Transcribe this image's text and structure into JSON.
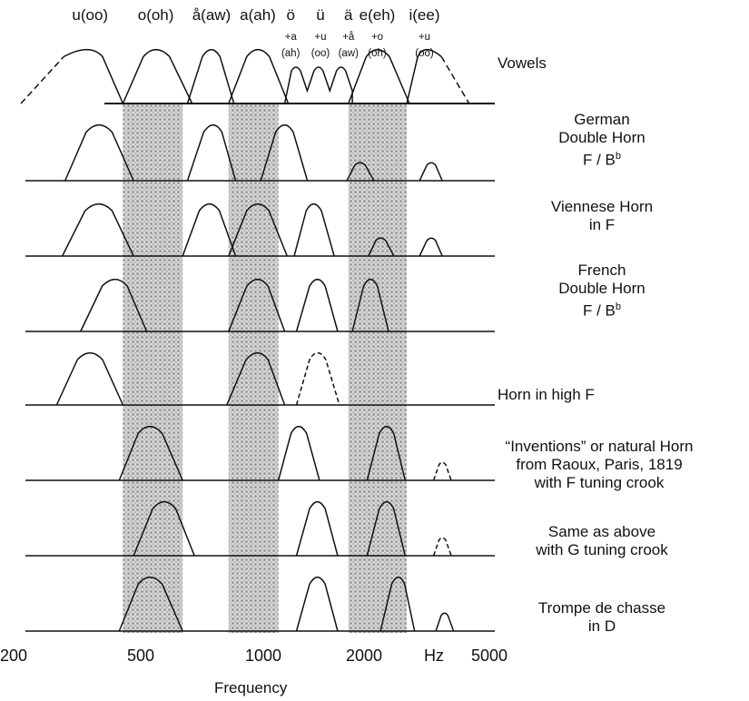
{
  "vowels": [
    {
      "label": "u(oo)",
      "sub1": "",
      "sub2": "",
      "freq": 320
    },
    {
      "label": "o(oh)",
      "sub1": "",
      "sub2": "",
      "freq": 500
    },
    {
      "label": "å(aw)",
      "sub1": "",
      "sub2": "",
      "freq": 730
    },
    {
      "label": "a(ah)",
      "sub1": "",
      "sub2": "",
      "freq": 1000
    },
    {
      "label": "ö",
      "sub1": "+a",
      "sub2": "(ah)",
      "freq": 1250
    },
    {
      "label": "ü",
      "sub1": "+u",
      "sub2": "(oo)",
      "freq": 1530
    },
    {
      "label": "ä",
      "sub1": "+å",
      "sub2": "(aw)",
      "freq": 1850
    },
    {
      "label": "e(eh)",
      "sub1": "+o",
      "sub2": "(oh)",
      "freq": 2250
    },
    {
      "label": "i(ee)",
      "sub1": "+u",
      "sub2": "(oo)",
      "freq": 3100
    }
  ],
  "rows": [
    {
      "label": "Vowels",
      "sup": ""
    },
    {
      "label": "German\nDouble Horn\nF / B",
      "sup": "b"
    },
    {
      "label": "Viennese Horn\nin F",
      "sup": ""
    },
    {
      "label": "French\nDouble Horn\nF / B",
      "sup": "b"
    },
    {
      "label": "Horn in high F",
      "sup": ""
    },
    {
      "label": "“Inventions” or natural Horn\nfrom Raoux, Paris, 1819\nwith F tuning crook",
      "sup": ""
    },
    {
      "label": "Same as above\nwith G tuning crook",
      "sup": ""
    },
    {
      "label": "Trompe de chasse\nin D",
      "sup": ""
    }
  ],
  "axis": {
    "ticks": [
      "200",
      "500",
      "1000",
      "2000",
      "Hz",
      "5000"
    ],
    "label": "Frequency",
    "min": 200,
    "max": 5000,
    "scale": "log"
  },
  "shaded_bands": [
    [
      400,
      600
    ],
    [
      820,
      1150
    ],
    [
      1850,
      2750
    ]
  ],
  "peaks": [
    [
      {
        "lo": 200,
        "c": 320,
        "hi": 400,
        "dashed_left": true
      },
      {
        "lo": 400,
        "c": 500,
        "hi": 640
      },
      {
        "lo": 620,
        "c": 730,
        "hi": 850
      },
      {
        "lo": 820,
        "c": 1000,
        "hi": 1230
      },
      {
        "lo": 1200,
        "c": 1500,
        "hi": 1900,
        "triple": true
      },
      {
        "lo": 1850,
        "c": 2250,
        "hi": 2800
      },
      {
        "lo": 2750,
        "c": 3100,
        "hi": 4200,
        "dashed_right": true
      }
    ],
    [
      {
        "lo": 270,
        "c": 340,
        "hi": 430
      },
      {
        "lo": 620,
        "c": 740,
        "hi": 860
      },
      {
        "lo": 1020,
        "c": 1200,
        "hi": 1400
      },
      {
        "lo": 1830,
        "c": 2000,
        "hi": 2200
      },
      {
        "lo": 3000,
        "c": 3250,
        "hi": 3500
      }
    ],
    [
      {
        "lo": 265,
        "c": 340,
        "hi": 430
      },
      {
        "lo": 600,
        "c": 720,
        "hi": 860
      },
      {
        "lo": 820,
        "c": 1000,
        "hi": 1220
      },
      {
        "lo": 1280,
        "c": 1460,
        "hi": 1680
      },
      {
        "lo": 2120,
        "c": 2300,
        "hi": 2520
      },
      {
        "lo": 3000,
        "c": 3250,
        "hi": 3500
      }
    ],
    [
      {
        "lo": 300,
        "c": 380,
        "hi": 470
      },
      {
        "lo": 820,
        "c": 1000,
        "hi": 1200
      },
      {
        "lo": 1300,
        "c": 1500,
        "hi": 1720
      },
      {
        "lo": 1900,
        "c": 2150,
        "hi": 2430
      }
    ],
    [
      {
        "lo": 255,
        "c": 320,
        "hi": 400
      },
      {
        "lo": 810,
        "c": 1000,
        "hi": 1200
      },
      {
        "lo": 1300,
        "c": 1500,
        "hi": 1740,
        "dashed": true
      }
    ],
    [
      {
        "lo": 390,
        "c": 480,
        "hi": 600
      },
      {
        "lo": 1150,
        "c": 1320,
        "hi": 1520
      },
      {
        "lo": 2100,
        "c": 2400,
        "hi": 2720
      },
      {
        "lo": 3300,
        "c": 3500,
        "hi": 3720,
        "dashed": true
      }
    ],
    [
      {
        "lo": 430,
        "c": 530,
        "hi": 650
      },
      {
        "lo": 1300,
        "c": 1500,
        "hi": 1720
      },
      {
        "lo": 2100,
        "c": 2400,
        "hi": 2720
      },
      {
        "lo": 3300,
        "c": 3500,
        "hi": 3720,
        "dashed": true
      }
    ],
    [
      {
        "lo": 390,
        "c": 480,
        "hi": 600
      },
      {
        "lo": 1300,
        "c": 1500,
        "hi": 1720
      },
      {
        "lo": 2300,
        "c": 2600,
        "hi": 2900
      },
      {
        "lo": 3350,
        "c": 3550,
        "hi": 3780
      }
    ]
  ]
}
